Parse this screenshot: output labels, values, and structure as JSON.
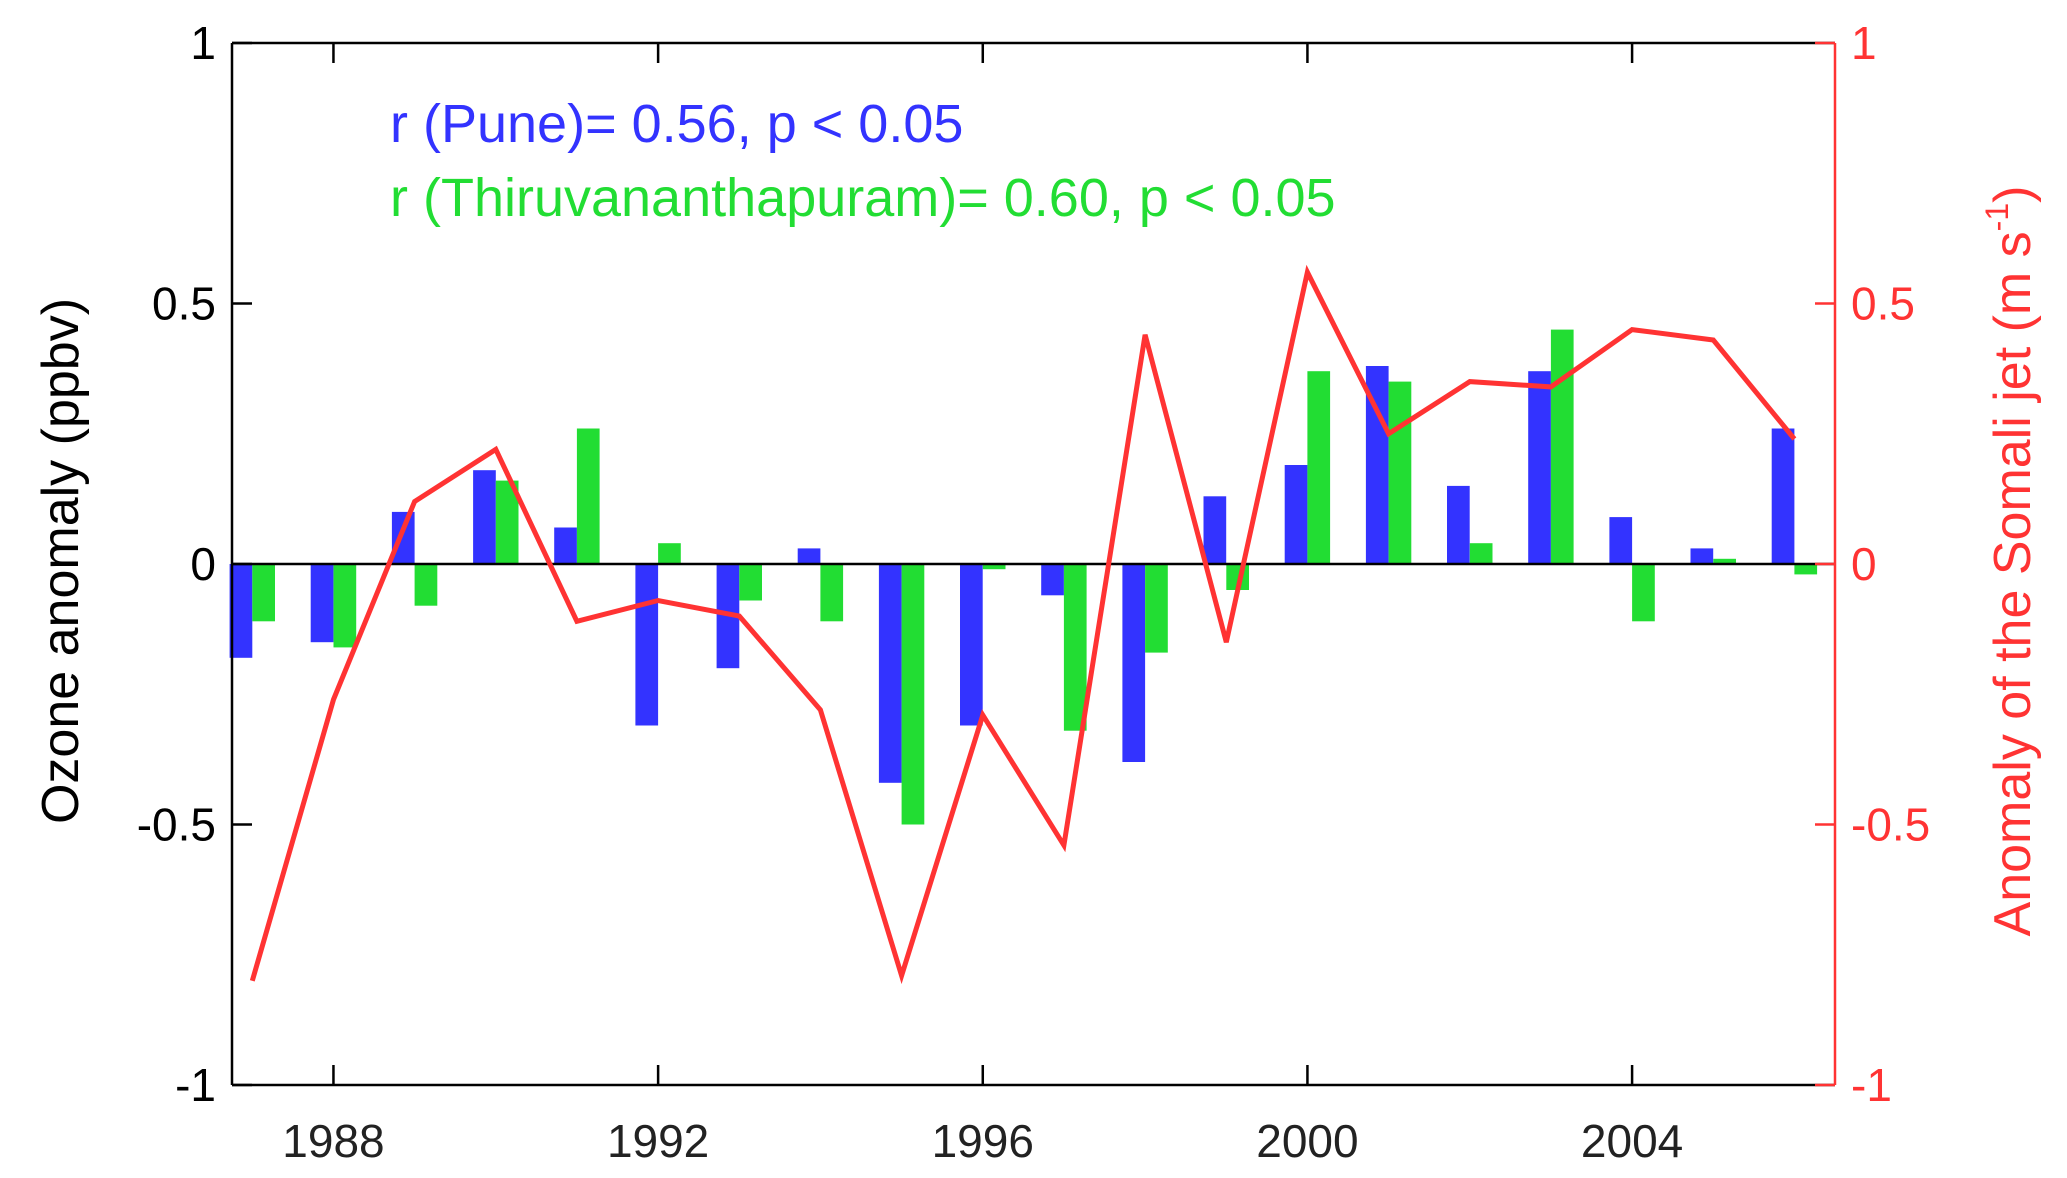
{
  "chart_data": {
    "type": "bar",
    "x": [
      1987,
      1988,
      1989,
      1990,
      1991,
      1992,
      1993,
      1994,
      1995,
      1996,
      1997,
      1998,
      1999,
      2000,
      2001,
      2002,
      2003,
      2004,
      2005,
      2006
    ],
    "xlim": [
      1986.75,
      2006.5
    ],
    "xticks": [
      "1988",
      "1992",
      "1996",
      "2000",
      "2004"
    ],
    "series": [
      {
        "name": "Pune",
        "type": "bar",
        "axis": "left",
        "color": "#3333ff",
        "values": [
          -0.18,
          -0.15,
          0.1,
          0.18,
          0.07,
          -0.31,
          -0.2,
          0.03,
          -0.42,
          -0.31,
          -0.06,
          -0.38,
          0.13,
          0.19,
          0.38,
          0.15,
          0.37,
          0.09,
          0.03,
          0.26
        ]
      },
      {
        "name": "Thiruvananthapuram",
        "type": "bar",
        "axis": "left",
        "color": "#22dd33",
        "values": [
          -0.11,
          -0.16,
          -0.08,
          0.16,
          0.26,
          0.04,
          -0.07,
          -0.11,
          -0.5,
          -0.01,
          -0.32,
          -0.17,
          -0.05,
          0.37,
          0.35,
          0.04,
          0.45,
          -0.11,
          0.01,
          -0.02
        ]
      },
      {
        "type": "line",
        "axis": "right",
        "color": "#ff3333",
        "values": [
          -0.8,
          -0.26,
          0.12,
          0.22,
          -0.11,
          -0.07,
          -0.1,
          -0.28,
          -0.79,
          -0.29,
          -0.54,
          0.44,
          -0.15,
          0.56,
          0.25,
          0.35,
          0.34,
          0.45,
          0.43,
          0.24
        ]
      }
    ],
    "ylabel_left": "Ozone anomaly (ppbv)",
    "ylabel_right_prefix": "Anomaly of the Somali jet (m s",
    "ylabel_right_sup": "-1",
    "ylabel_right_suffix": ")",
    "ylim_left": [
      -1,
      1
    ],
    "ylim_right": [
      -1,
      1
    ],
    "yticks_left": [
      "-1",
      "-0.5",
      "0",
      "0.5",
      "1"
    ],
    "yticks_right": [
      "-1",
      "-0.5",
      "0",
      "0.5",
      "1"
    ],
    "annotations": [
      {
        "text": "r (Pune)= 0.56,  p < 0.05",
        "color": "#3333ff"
      },
      {
        "text": "r (Thiruvananthapuram)= 0.60,  p < 0.05",
        "color": "#22dd33"
      }
    ],
    "right_axis_color": "#ff3333",
    "grid": false
  }
}
